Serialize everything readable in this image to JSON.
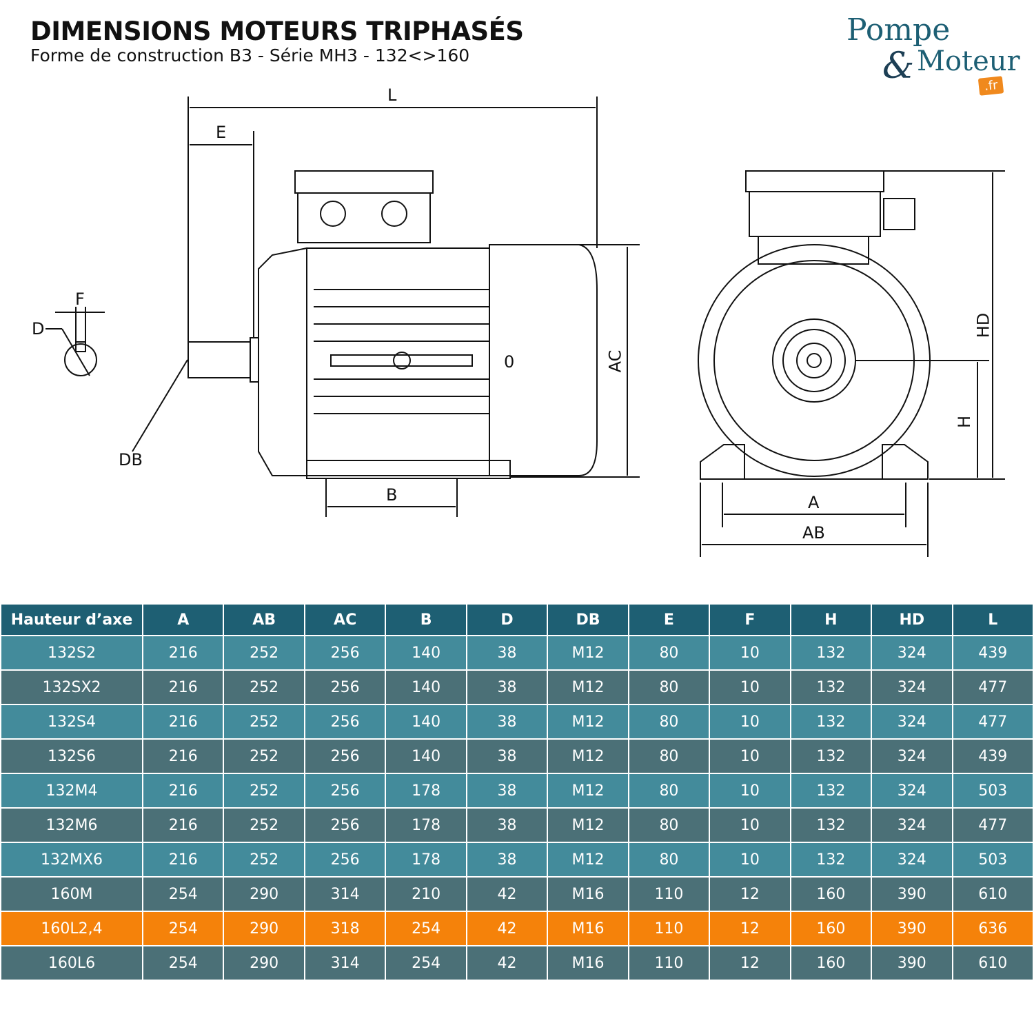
{
  "header": {
    "title": "DIMENSIONS MOTEURS TRIPHASÉS",
    "subtitle": "Forme de construction B3 - Série MH3 - 132<>160"
  },
  "logo": {
    "line1": "Pompe",
    "amp": "&",
    "line2": "Moteur",
    "tld": ".fr"
  },
  "colors": {
    "header": "#1e5f73",
    "row_light": "#438b9b",
    "row_dark": "#4b7077",
    "highlight": "#f5820a",
    "brand": "#1d5f74"
  },
  "diagram": {
    "labels": {
      "L": "L",
      "E": "E",
      "F": "F",
      "D": "D",
      "DB": "DB",
      "B": "B",
      "AC": "AC",
      "O": "0",
      "HD": "HD",
      "H": "H",
      "A": "A",
      "AB": "AB"
    }
  },
  "table": {
    "columns": [
      "Hauteur d’axe",
      "A",
      "AB",
      "AC",
      "B",
      "D",
      "DB",
      "E",
      "F",
      "H",
      "HD",
      "L"
    ],
    "rows": [
      {
        "style": "light",
        "cells": [
          "132S2",
          "216",
          "252",
          "256",
          "140",
          "38",
          "M12",
          "80",
          "10",
          "132",
          "324",
          "439"
        ]
      },
      {
        "style": "dark",
        "cells": [
          "132SX2",
          "216",
          "252",
          "256",
          "140",
          "38",
          "M12",
          "80",
          "10",
          "132",
          "324",
          "477"
        ]
      },
      {
        "style": "light",
        "cells": [
          "132S4",
          "216",
          "252",
          "256",
          "140",
          "38",
          "M12",
          "80",
          "10",
          "132",
          "324",
          "477"
        ]
      },
      {
        "style": "dark",
        "cells": [
          "132S6",
          "216",
          "252",
          "256",
          "140",
          "38",
          "M12",
          "80",
          "10",
          "132",
          "324",
          "439"
        ]
      },
      {
        "style": "light",
        "cells": [
          "132M4",
          "216",
          "252",
          "256",
          "178",
          "38",
          "M12",
          "80",
          "10",
          "132",
          "324",
          "503"
        ]
      },
      {
        "style": "dark",
        "cells": [
          "132M6",
          "216",
          "252",
          "256",
          "178",
          "38",
          "M12",
          "80",
          "10",
          "132",
          "324",
          "477"
        ]
      },
      {
        "style": "light",
        "cells": [
          "132MX6",
          "216",
          "252",
          "256",
          "178",
          "38",
          "M12",
          "80",
          "10",
          "132",
          "324",
          "503"
        ]
      },
      {
        "style": "dark",
        "cells": [
          "160M",
          "254",
          "290",
          "314",
          "210",
          "42",
          "M16",
          "110",
          "12",
          "160",
          "390",
          "610"
        ]
      },
      {
        "style": "hl",
        "cells": [
          "160L2,4",
          "254",
          "290",
          "318",
          "254",
          "42",
          "M16",
          "110",
          "12",
          "160",
          "390",
          "636"
        ]
      },
      {
        "style": "dark",
        "cells": [
          "160L6",
          "254",
          "290",
          "314",
          "254",
          "42",
          "M16",
          "110",
          "12",
          "160",
          "390",
          "610"
        ]
      }
    ]
  }
}
